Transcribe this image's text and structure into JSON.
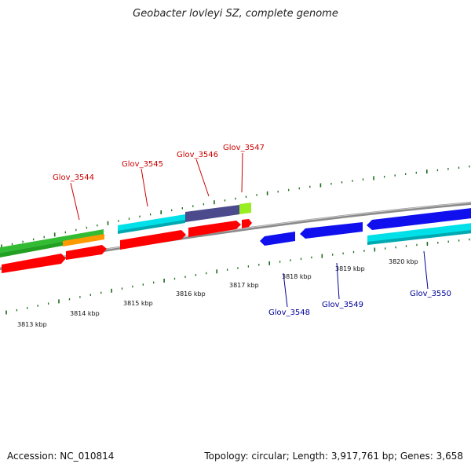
{
  "title": "Geobacter lovleyi SZ, complete genome",
  "footer": {
    "accession": "Accession: NC_010814",
    "summary": "Topology: circular; Length: 3,917,761 bp; Genes: 3,658"
  },
  "colors": {
    "label_red": "#cc0000",
    "label_blue": "#000099",
    "backbone": "#8a8a8a",
    "tick": "#1a6b1a",
    "red_feature": "#ff0000",
    "blue_feature": "#1010ee",
    "cyan_feature": "#00e0e8",
    "green_feature": "#33bb33",
    "orange_feature": "#ff9900",
    "purple_feature": "#4a4a8c",
    "light_green_feature": "#99ee22"
  },
  "scale_labels": [
    "3813 kbp",
    "3814 kbp",
    "3815 kbp",
    "3816 kbp",
    "3817 kbp",
    "3818 kbp",
    "3819 kbp",
    "3820 kbp"
  ],
  "gene_labels": [
    {
      "text": "Glov_3544",
      "color": "red"
    },
    {
      "text": "Glov_3545",
      "color": "red"
    },
    {
      "text": "Glov_3546",
      "color": "red"
    },
    {
      "text": "Glov_3547",
      "color": "red"
    },
    {
      "text": "Glov_3548",
      "color": "blue"
    },
    {
      "text": "Glov_3549",
      "color": "blue"
    },
    {
      "text": "Glov_3550",
      "color": "blue"
    }
  ]
}
